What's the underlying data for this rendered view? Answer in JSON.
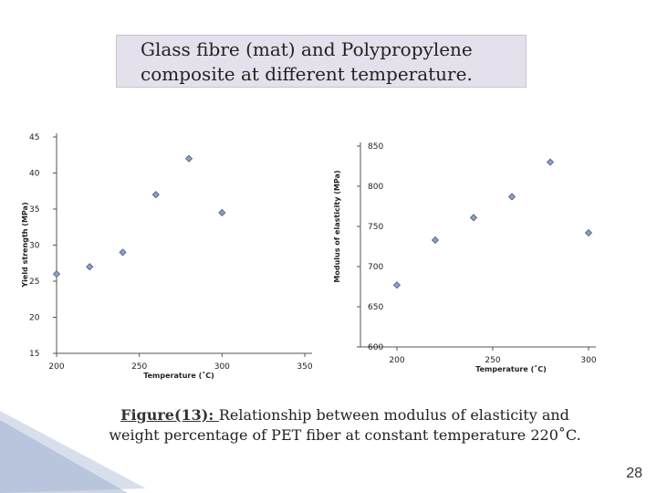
{
  "slide": {
    "title_line1": "Glass fibre (mat) and Polypropylene",
    "title_line2": "composite at different temperature.",
    "caption_ref": "Figure(13): ",
    "caption_line1": "Relationship between modulus of elasticity and",
    "caption_line2": "weight percentage of PET fiber at constant temperature 220˚C.",
    "page_number": "28"
  },
  "colors": {
    "marker_fill": "#8fa0c4",
    "marker_stroke": "#4a5a80",
    "axis": "#555555",
    "title_bg": "#e4e0ec"
  },
  "chart_data": [
    {
      "type": "scatter",
      "xlabel": "Temperature (˚C)",
      "ylabel": "Yield strength (MPa)",
      "xlim": [
        200,
        350
      ],
      "ylim": [
        15,
        45
      ],
      "xticks": [
        "200",
        "250",
        "300",
        "350"
      ],
      "yticks": [
        "15",
        "20",
        "25",
        "30",
        "35",
        "40",
        "45"
      ],
      "grid": false,
      "points": [
        {
          "x": 200,
          "y": 26
        },
        {
          "x": 220,
          "y": 27
        },
        {
          "x": 240,
          "y": 29
        },
        {
          "x": 260,
          "y": 37
        },
        {
          "x": 280,
          "y": 42
        },
        {
          "x": 300,
          "y": 34.5
        }
      ]
    },
    {
      "type": "scatter",
      "xlabel": "Temperature (˚C)",
      "ylabel": "Modulus of elasticity (MPa)",
      "xlim": [
        200,
        300
      ],
      "ylim": [
        600,
        850
      ],
      "xticks": [
        "200",
        "250",
        "300"
      ],
      "yticks": [
        "600",
        "650",
        "700",
        "750",
        "800",
        "850"
      ],
      "grid": false,
      "points": [
        {
          "x": 200,
          "y": 677
        },
        {
          "x": 220,
          "y": 733
        },
        {
          "x": 240,
          "y": 761
        },
        {
          "x": 260,
          "y": 787
        },
        {
          "x": 280,
          "y": 830
        },
        {
          "x": 300,
          "y": 742
        }
      ]
    }
  ]
}
